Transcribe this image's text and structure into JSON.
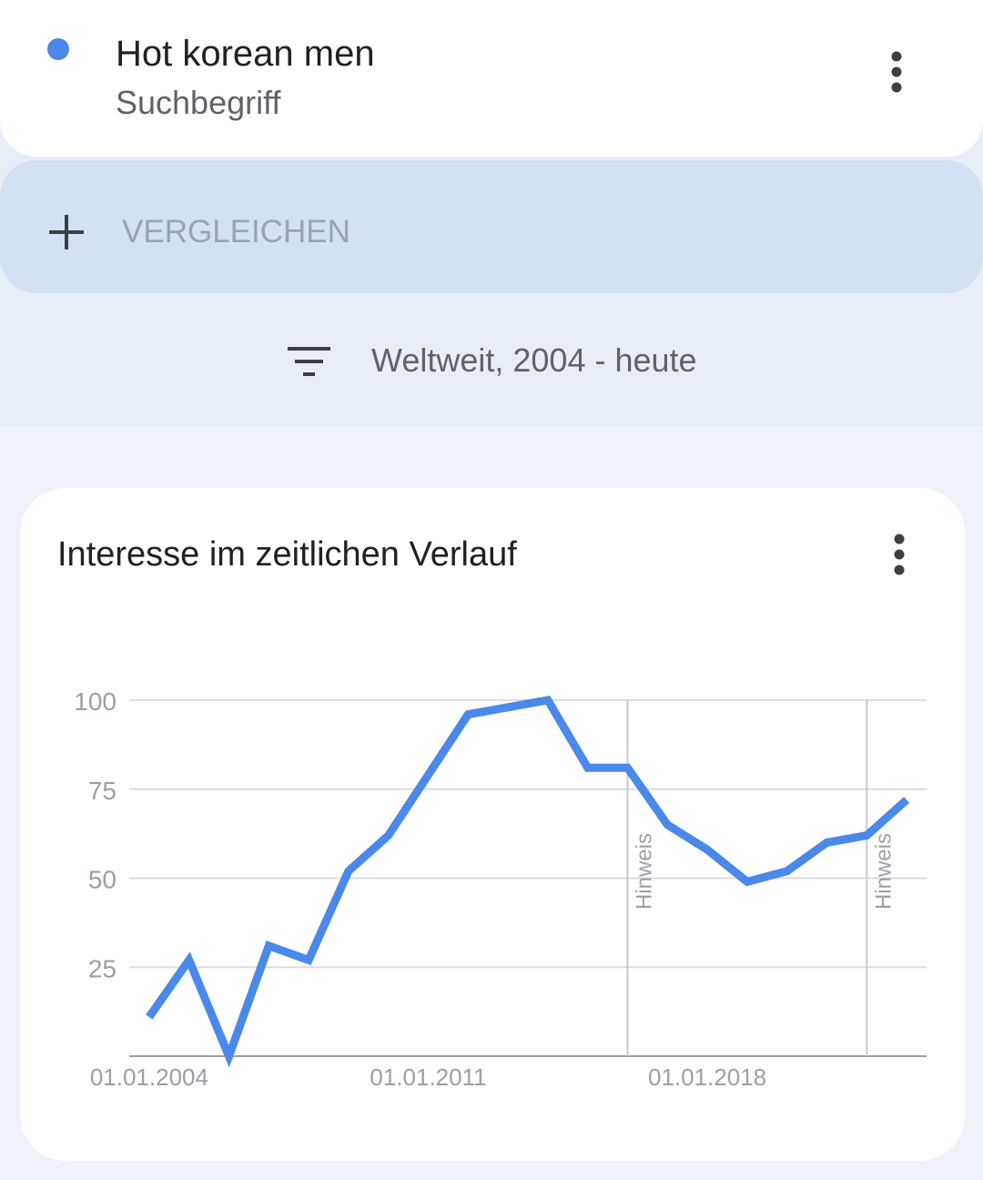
{
  "app": {
    "term": "Hot korean men",
    "term_type": "Suchbegriff",
    "compare": "VERGLEICHEN",
    "filter": "Weltweit, 2004 - heute"
  },
  "chart_data": {
    "type": "line",
    "title": "Interesse im zeitlichen Verlauf",
    "x": [
      2004,
      2005,
      2006,
      2007,
      2008,
      2009,
      2010,
      2011,
      2012,
      2013,
      2014,
      2015,
      2016,
      2017,
      2018,
      2019,
      2020,
      2021,
      2022,
      2023
    ],
    "series": [
      {
        "name": "Hot korean men",
        "color": "#4a89ea",
        "values": [
          11,
          27,
          0,
          31,
          27,
          52,
          62,
          79,
          96,
          98,
          100,
          81,
          81,
          65,
          58,
          49,
          52,
          60,
          62,
          72
        ]
      }
    ],
    "xlim": [
      2003.5,
      2023.5
    ],
    "xticks": [
      {
        "value": 2004,
        "label": "01.01.2004"
      },
      {
        "value": 2011,
        "label": "01.01.2011"
      },
      {
        "value": 2018,
        "label": "01.01.2018"
      }
    ],
    "ylim": [
      0,
      100
    ],
    "yticks": [
      25,
      50,
      75,
      100
    ],
    "grid": true,
    "annotations": [
      {
        "x": 2016,
        "text": "Hinweis"
      },
      {
        "x": 2022,
        "text": "Hinweis"
      }
    ]
  }
}
